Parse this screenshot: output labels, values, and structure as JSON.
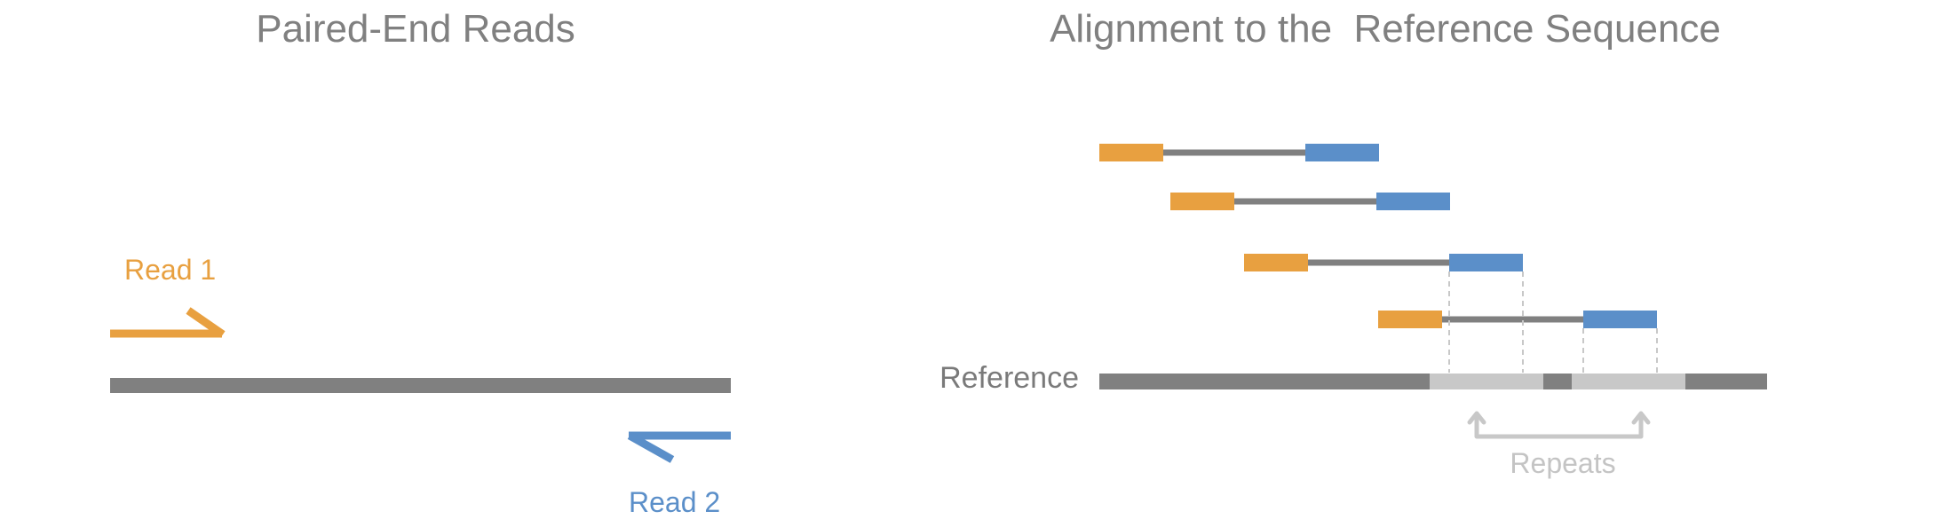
{
  "left_panel": {
    "title": "Paired-End Reads",
    "read1_label": "Read 1",
    "read2_label": "Read 2"
  },
  "right_panel": {
    "title": "Alignment to the  Reference Sequence",
    "reference_label": "Reference",
    "repeats_label": "Repeats",
    "read_pair_count": 4
  },
  "colors": {
    "read1": "#E8A040",
    "read2": "#5B8FC9",
    "reference": "#808080",
    "insert": "#808080",
    "repeat_region": "#C8C8C8",
    "dashed_guides": "#C8C8C8"
  }
}
